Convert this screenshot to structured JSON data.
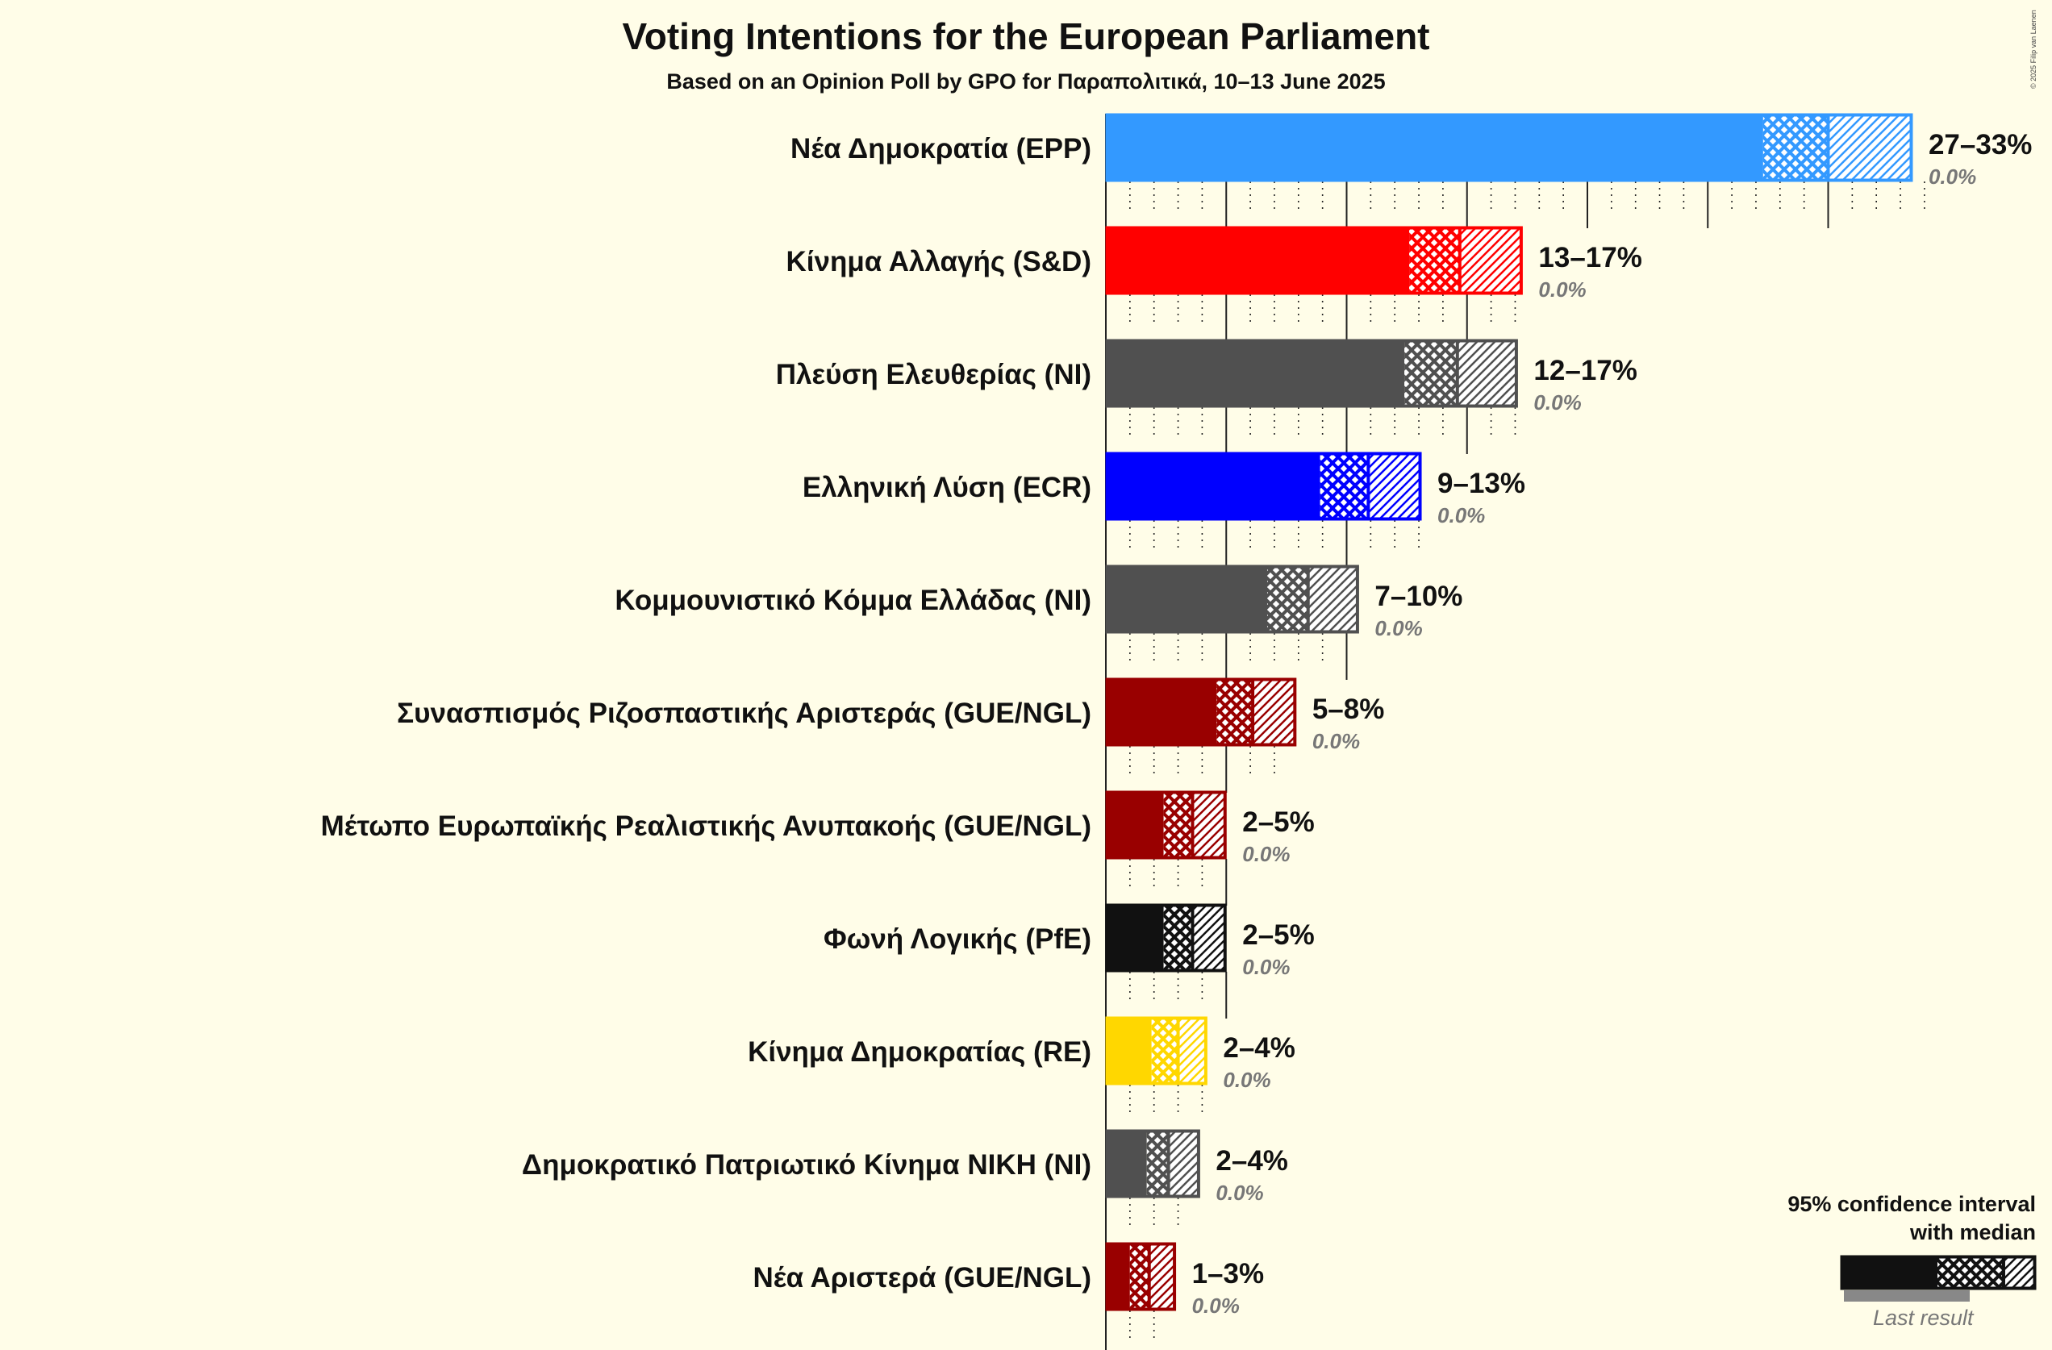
{
  "title": "Voting Intentions for the European Parliament",
  "subtitle": "Based on an Opinion Poll by GPO for Παραπολιτικά, 10–13 June 2025",
  "copyright": "© 2025 Filip van Laenen",
  "legend": {
    "line1": "95% confidence interval",
    "line2": "with median",
    "last_result": "Last result"
  },
  "chart_data": {
    "type": "bar",
    "orientation": "horizontal",
    "x_unit": "%",
    "categories": [
      "Νέα Δημοκρατία (EPP)",
      "Κίνημα Αλλαγής (S&D)",
      "Πλεύση Ελευθερίας (NI)",
      "Ελληνική Λύση (ECR)",
      "Κομμουνιστικό Κόμμα Ελλάδας (NI)",
      "Συνασπισμός Ριζοσπαστικής Αριστεράς (GUE/NGL)",
      "Μέτωπο Ευρωπαϊκής Ρεαλιστικής Ανυπακοής (GUE/NGL)",
      "Φωνή Λογικής (PfE)",
      "Κίνημα Δημοκρατίας (RE)",
      "Δημοκρατικό Πατριωτικό Κίνημα ΝΙΚΗ (NI)",
      "Νέα Αριστερά (GUE/NGL)"
    ],
    "parties": [
      {
        "name": "Νέα Δημοκρατία (EPP)",
        "low": 27.3,
        "median": 30.0,
        "high": 33.5,
        "range_label": "27–33%",
        "last_label": "0.0%",
        "color": "#3399ff"
      },
      {
        "name": "Κίνημα Αλλαγής (S&D)",
        "low": 12.6,
        "median": 14.7,
        "high": 17.3,
        "range_label": "13–17%",
        "last_label": "0.0%",
        "color": "#ff0000"
      },
      {
        "name": "Πλεύση Ελευθερίας (NI)",
        "low": 12.4,
        "median": 14.6,
        "high": 17.1,
        "range_label": "12–17%",
        "last_label": "0.0%",
        "color": "#505050"
      },
      {
        "name": "Ελληνική Λύση (ECR)",
        "low": 8.9,
        "median": 10.9,
        "high": 13.1,
        "range_label": "9–13%",
        "last_label": "0.0%",
        "color": "#0000ff"
      },
      {
        "name": "Κομμουνιστικό Κόμμα Ελλάδας (NI)",
        "low": 6.7,
        "median": 8.4,
        "high": 10.5,
        "range_label": "7–10%",
        "last_label": "0.0%",
        "color": "#505050"
      },
      {
        "name": "Συνασπισμός Ριζοσπαστικής Αριστεράς (GUE/NGL)",
        "low": 4.6,
        "median": 6.1,
        "high": 7.9,
        "range_label": "5–8%",
        "last_label": "0.0%",
        "color": "#990000"
      },
      {
        "name": "Μέτωπο Ευρωπαϊκής Ρεαλιστικής Ανυπακοής (GUE/NGL)",
        "low": 2.4,
        "median": 3.6,
        "high": 5.0,
        "range_label": "2–5%",
        "last_label": "0.0%",
        "color": "#990000"
      },
      {
        "name": "Φωνή Λογικής (PfE)",
        "low": 2.4,
        "median": 3.6,
        "high": 5.0,
        "range_label": "2–5%",
        "last_label": "0.0%",
        "color": "#111111"
      },
      {
        "name": "Κίνημα Δημοκρατίας (RE)",
        "low": 1.9,
        "median": 3.0,
        "high": 4.2,
        "range_label": "2–4%",
        "last_label": "0.0%",
        "color": "#ffd700"
      },
      {
        "name": "Δημοκρατικό Πατριωτικό Κίνημα ΝΙΚΗ (NI)",
        "low": 1.7,
        "median": 2.6,
        "high": 3.9,
        "range_label": "2–4%",
        "last_label": "0.0%",
        "color": "#505050"
      },
      {
        "name": "Νέα Αριστερά (GUE/NGL)",
        "low": 1.0,
        "median": 1.8,
        "high": 2.9,
        "range_label": "1–3%",
        "last_label": "0.0%",
        "color": "#990000"
      }
    ],
    "xlim": [
      0,
      34
    ],
    "minor_tick_every": 1,
    "major_tick_every": 5,
    "grid": "dotted-per-row"
  }
}
